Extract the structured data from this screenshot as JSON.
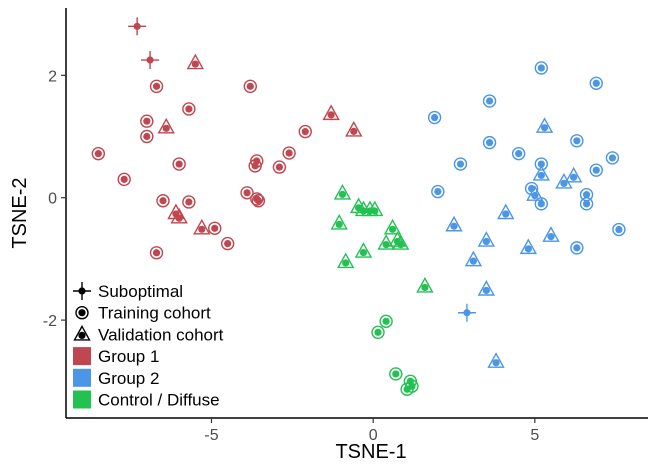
{
  "chart_data": {
    "type": "scatter",
    "xlabel": "TSNE-1",
    "ylabel": "TSNE-2",
    "xlim": [
      -9.5,
      8.5
    ],
    "ylim": [
      -3.6,
      3.1
    ],
    "xticks": [
      -5,
      0,
      5
    ],
    "yticks": [
      -2,
      0,
      2
    ],
    "grid": false,
    "legend": {
      "position": "bottom-left",
      "shapes": [
        {
          "key": "suboptimal",
          "label": "Suboptimal"
        },
        {
          "key": "training",
          "label": "Training cohort"
        },
        {
          "key": "validation",
          "label": "Validation cohort"
        }
      ],
      "groups": [
        {
          "key": "g1",
          "label": "Group 1",
          "color": "#c0464f"
        },
        {
          "key": "g2",
          "label": "Group 2",
          "color": "#4b96e6"
        },
        {
          "key": "control",
          "label": "Control / Diffuse",
          "color": "#22c152"
        }
      ]
    },
    "series": [
      {
        "name": "Group 1",
        "color": "#c0464f",
        "points": [
          {
            "x": -7.3,
            "y": 2.8,
            "shape": "suboptimal"
          },
          {
            "x": -6.9,
            "y": 2.25,
            "shape": "suboptimal"
          },
          {
            "x": -5.5,
            "y": 2.2,
            "shape": "validation"
          },
          {
            "x": -6.7,
            "y": 1.82,
            "shape": "training"
          },
          {
            "x": -3.8,
            "y": 1.82,
            "shape": "training"
          },
          {
            "x": -5.7,
            "y": 1.45,
            "shape": "training"
          },
          {
            "x": -7.0,
            "y": 1.25,
            "shape": "training"
          },
          {
            "x": -6.4,
            "y": 1.15,
            "shape": "validation"
          },
          {
            "x": -7.0,
            "y": 1.0,
            "shape": "training"
          },
          {
            "x": -1.3,
            "y": 1.37,
            "shape": "validation"
          },
          {
            "x": -2.1,
            "y": 1.08,
            "shape": "training"
          },
          {
            "x": -0.6,
            "y": 1.1,
            "shape": "validation"
          },
          {
            "x": -8.5,
            "y": 0.72,
            "shape": "training"
          },
          {
            "x": -6.0,
            "y": 0.55,
            "shape": "training"
          },
          {
            "x": -3.6,
            "y": 0.6,
            "shape": "training"
          },
          {
            "x": -3.65,
            "y": 0.52,
            "shape": "training"
          },
          {
            "x": -2.6,
            "y": 0.73,
            "shape": "training"
          },
          {
            "x": -2.9,
            "y": 0.5,
            "shape": "training"
          },
          {
            "x": -7.7,
            "y": 0.3,
            "shape": "training"
          },
          {
            "x": -3.9,
            "y": 0.08,
            "shape": "training"
          },
          {
            "x": -3.6,
            "y": -0.02,
            "shape": "training"
          },
          {
            "x": -3.55,
            "y": -0.05,
            "shape": "training"
          },
          {
            "x": -6.5,
            "y": -0.05,
            "shape": "training"
          },
          {
            "x": -5.7,
            "y": -0.07,
            "shape": "training"
          },
          {
            "x": -6.1,
            "y": -0.25,
            "shape": "validation"
          },
          {
            "x": -6.0,
            "y": -0.32,
            "shape": "validation"
          },
          {
            "x": -5.3,
            "y": -0.5,
            "shape": "validation"
          },
          {
            "x": -4.9,
            "y": -0.5,
            "shape": "training"
          },
          {
            "x": -4.5,
            "y": -0.75,
            "shape": "training"
          },
          {
            "x": -6.7,
            "y": -0.9,
            "shape": "training"
          }
        ]
      },
      {
        "name": "Group 2",
        "color": "#4b96e6",
        "points": [
          {
            "x": 5.2,
            "y": 2.12,
            "shape": "training"
          },
          {
            "x": 6.9,
            "y": 1.87,
            "shape": "training"
          },
          {
            "x": 3.6,
            "y": 1.58,
            "shape": "training"
          },
          {
            "x": 1.9,
            "y": 1.31,
            "shape": "training"
          },
          {
            "x": 5.3,
            "y": 1.16,
            "shape": "validation"
          },
          {
            "x": 3.6,
            "y": 0.9,
            "shape": "training"
          },
          {
            "x": 6.3,
            "y": 0.93,
            "shape": "training"
          },
          {
            "x": 4.5,
            "y": 0.72,
            "shape": "training"
          },
          {
            "x": 5.2,
            "y": 0.55,
            "shape": "training"
          },
          {
            "x": 7.4,
            "y": 0.65,
            "shape": "training"
          },
          {
            "x": 2.7,
            "y": 0.55,
            "shape": "training"
          },
          {
            "x": 6.9,
            "y": 0.45,
            "shape": "training"
          },
          {
            "x": 5.2,
            "y": 0.38,
            "shape": "validation"
          },
          {
            "x": 6.2,
            "y": 0.35,
            "shape": "validation"
          },
          {
            "x": 5.9,
            "y": 0.25,
            "shape": "validation"
          },
          {
            "x": 2.0,
            "y": 0.1,
            "shape": "training"
          },
          {
            "x": 4.9,
            "y": 0.15,
            "shape": "training"
          },
          {
            "x": 5.0,
            "y": 0.05,
            "shape": "validation"
          },
          {
            "x": 6.6,
            "y": 0.05,
            "shape": "training"
          },
          {
            "x": 6.6,
            "y": -0.1,
            "shape": "training"
          },
          {
            "x": 5.2,
            "y": -0.1,
            "shape": "training"
          },
          {
            "x": 4.1,
            "y": -0.25,
            "shape": "validation"
          },
          {
            "x": 7.6,
            "y": -0.52,
            "shape": "training"
          },
          {
            "x": 2.5,
            "y": -0.45,
            "shape": "validation"
          },
          {
            "x": 5.5,
            "y": -0.62,
            "shape": "validation"
          },
          {
            "x": 3.5,
            "y": -0.7,
            "shape": "validation"
          },
          {
            "x": 4.8,
            "y": -0.82,
            "shape": "validation"
          },
          {
            "x": 6.3,
            "y": -0.82,
            "shape": "training"
          },
          {
            "x": 3.1,
            "y": -1.02,
            "shape": "validation"
          },
          {
            "x": 3.5,
            "y": -1.5,
            "shape": "validation"
          },
          {
            "x": 2.9,
            "y": -1.88,
            "shape": "suboptimal"
          },
          {
            "x": 3.8,
            "y": -2.68,
            "shape": "validation"
          }
        ]
      },
      {
        "name": "Control / Diffuse",
        "color": "#22c152",
        "points": [
          {
            "x": -0.95,
            "y": 0.07,
            "shape": "validation"
          },
          {
            "x": -0.45,
            "y": -0.15,
            "shape": "validation"
          },
          {
            "x": -0.3,
            "y": -0.2,
            "shape": "validation"
          },
          {
            "x": -0.1,
            "y": -0.2,
            "shape": "validation"
          },
          {
            "x": 0.05,
            "y": -0.2,
            "shape": "validation"
          },
          {
            "x": -1.05,
            "y": -0.42,
            "shape": "validation"
          },
          {
            "x": 0.6,
            "y": -0.5,
            "shape": "validation"
          },
          {
            "x": 0.75,
            "y": -0.7,
            "shape": "validation"
          },
          {
            "x": 0.4,
            "y": -0.75,
            "shape": "validation"
          },
          {
            "x": 0.85,
            "y": -0.75,
            "shape": "validation"
          },
          {
            "x": -0.3,
            "y": -0.88,
            "shape": "validation"
          },
          {
            "x": -0.85,
            "y": -1.05,
            "shape": "validation"
          },
          {
            "x": 1.6,
            "y": -1.45,
            "shape": "validation"
          },
          {
            "x": 0.4,
            "y": -2.02,
            "shape": "training"
          },
          {
            "x": 0.15,
            "y": -2.2,
            "shape": "training"
          },
          {
            "x": 0.7,
            "y": -2.88,
            "shape": "training"
          },
          {
            "x": 1.15,
            "y": -3.0,
            "shape": "training"
          },
          {
            "x": 1.2,
            "y": -3.08,
            "shape": "training"
          },
          {
            "x": 1.05,
            "y": -3.13,
            "shape": "training"
          }
        ]
      }
    ]
  }
}
